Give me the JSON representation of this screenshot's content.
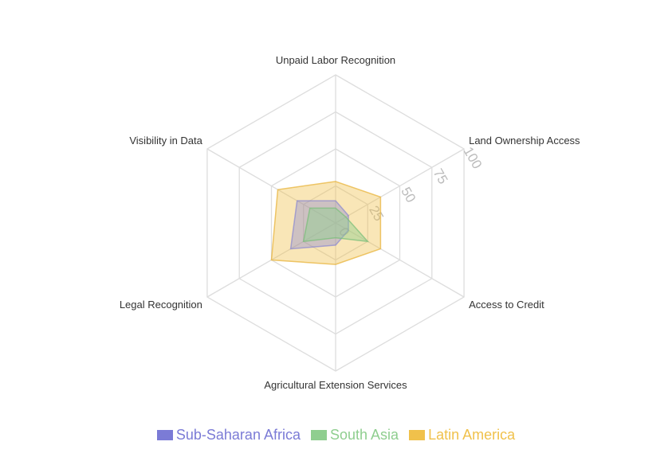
{
  "chart_data": {
    "type": "radar",
    "axes": [
      "Unpaid Labor Recognition",
      "Land Ownership Access",
      "Access to Credit",
      "Agricultural Extension Services",
      "Legal Recognition",
      "Visibility in Data"
    ],
    "radial_ticks": [
      "0",
      "25",
      "50",
      "75",
      "100"
    ],
    "range": [
      0,
      100
    ],
    "series": [
      {
        "name": "Sub-Saharan Africa",
        "color": "#7b7bd6",
        "values": [
          15,
          10,
          10,
          15,
          35,
          30
        ]
      },
      {
        "name": "South Asia",
        "color": "#8fce8f",
        "values": [
          10,
          8,
          25,
          10,
          25,
          20
        ]
      },
      {
        "name": "Latin America",
        "color": "#f0c14b",
        "values": [
          28,
          35,
          35,
          28,
          50,
          45
        ]
      }
    ],
    "legend_position": "bottom"
  }
}
